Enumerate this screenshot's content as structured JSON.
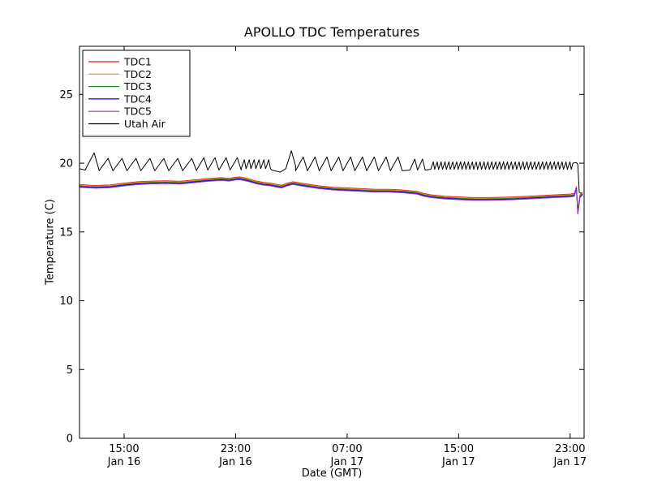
{
  "chart_data": {
    "type": "line",
    "title": "APOLLO TDC Temperatures",
    "xlabel": "Date (GMT)",
    "ylabel": "Temperature (C)",
    "x_unit": "hours since 12:00 Jan 16 (GMT)",
    "xlim": [
      -0.2,
      36.0
    ],
    "ylim": [
      0,
      28.5
    ],
    "yticks": [
      0,
      5,
      10,
      15,
      20,
      25
    ],
    "xticks": [
      {
        "t": 3,
        "time": "15:00",
        "date": "Jan 16"
      },
      {
        "t": 11,
        "time": "23:00",
        "date": "Jan 16"
      },
      {
        "t": 19,
        "time": "07:00",
        "date": "Jan 17"
      },
      {
        "t": 27,
        "time": "15:00",
        "date": "Jan 17"
      },
      {
        "t": 35,
        "time": "23:00",
        "date": "Jan 17"
      }
    ],
    "grid": false,
    "legend_position": "upper left",
    "tdc_base": {
      "x": [
        -0.2,
        0.5,
        1,
        2,
        3,
        4,
        5,
        6,
        7,
        8,
        9,
        10,
        10.5,
        11,
        11.3,
        11.8,
        12.5,
        13,
        13.5,
        14,
        14.3,
        14.7,
        15.1,
        15.4,
        16,
        17,
        18,
        19,
        20,
        21,
        22,
        23,
        23.5,
        24,
        24.5,
        25,
        26,
        27,
        28,
        29,
        30,
        31,
        32,
        33,
        34,
        35,
        35.3,
        35.45,
        35.55,
        35.7,
        35.9
      ],
      "y": [
        18.35,
        18.3,
        18.28,
        18.32,
        18.45,
        18.55,
        18.6,
        18.62,
        18.58,
        18.68,
        18.78,
        18.85,
        18.8,
        18.88,
        18.9,
        18.8,
        18.6,
        18.5,
        18.45,
        18.35,
        18.3,
        18.45,
        18.55,
        18.5,
        18.4,
        18.25,
        18.15,
        18.1,
        18.05,
        18.0,
        18.0,
        17.95,
        17.9,
        17.85,
        17.7,
        17.6,
        17.5,
        17.45,
        17.4,
        17.4,
        17.42,
        17.45,
        17.5,
        17.55,
        17.6,
        17.65,
        17.7,
        18.2,
        16.4,
        17.6,
        17.8
      ]
    },
    "series": [
      {
        "name": "TDC1",
        "color": "#e41a1c",
        "use_base": true,
        "offset": 0.1
      },
      {
        "name": "TDC2",
        "color": "#ff8c00",
        "use_base": true,
        "offset": 0.05
      },
      {
        "name": "TDC3",
        "color": "#228b22",
        "use_base": true,
        "offset": 0.0
      },
      {
        "name": "TDC4",
        "color": "#0000ff",
        "use_base": true,
        "offset": -0.05
      },
      {
        "name": "TDC5",
        "color": "#9932cc",
        "use_base": true,
        "offset": -0.1
      },
      {
        "name": "Utah Air",
        "color": "#000000",
        "segments": [
          {
            "type": "points",
            "pts": [
              [
                -0.2,
                19.6
              ],
              [
                0.2,
                19.5
              ]
            ]
          },
          {
            "type": "saw",
            "t0": 0.2,
            "t1": 1.2,
            "period": 1.0,
            "lo": 19.5,
            "hi": 20.75
          },
          {
            "type": "saw",
            "t0": 1.2,
            "t1": 8.2,
            "period": 1.0,
            "lo": 19.45,
            "hi": 20.35
          },
          {
            "type": "saw",
            "t0": 8.2,
            "t1": 11.4,
            "period": 0.8,
            "lo": 19.5,
            "hi": 20.4
          },
          {
            "type": "saw",
            "t0": 11.4,
            "t1": 13.6,
            "period": 0.35,
            "lo": 19.6,
            "hi": 20.25
          },
          {
            "type": "points",
            "pts": [
              [
                13.6,
                19.5
              ],
              [
                14.2,
                19.35
              ],
              [
                14.6,
                19.6
              ],
              [
                15.0,
                20.9
              ],
              [
                15.3,
                19.8
              ]
            ]
          },
          {
            "type": "saw",
            "t0": 15.3,
            "t1": 23.5,
            "period": 0.85,
            "lo": 19.45,
            "hi": 20.45
          },
          {
            "type": "saw",
            "t0": 23.5,
            "t1": 25.0,
            "period": 0.55,
            "lo": 19.5,
            "hi": 20.3
          },
          {
            "type": "saw",
            "t0": 25.0,
            "t1": 35.2,
            "period": 0.28,
            "lo": 19.55,
            "hi": 20.1
          },
          {
            "type": "points",
            "pts": [
              [
                35.2,
                20.0
              ],
              [
                35.45,
                20.05
              ],
              [
                35.55,
                19.9
              ],
              [
                35.65,
                17.9
              ],
              [
                35.8,
                17.8
              ]
            ]
          }
        ]
      }
    ]
  }
}
